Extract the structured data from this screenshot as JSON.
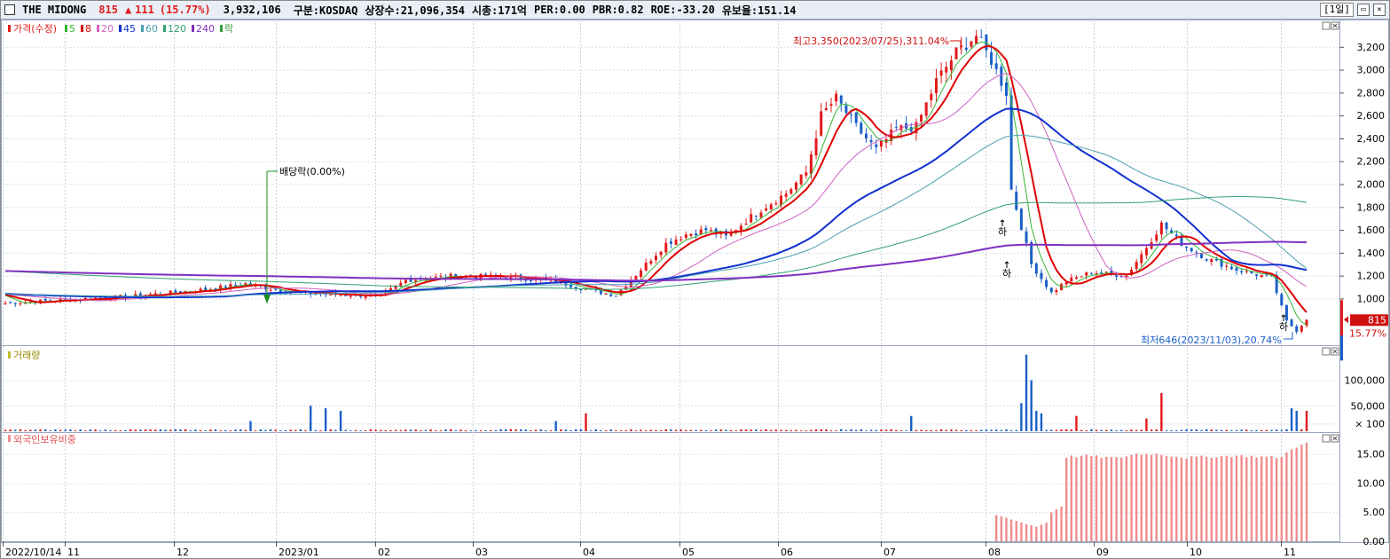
{
  "header": {
    "name": "THE MIDONG",
    "price": "815",
    "change_arrow": "▲",
    "change": "111",
    "change_pct": "(15.77%)",
    "volume": "3,932,106",
    "market": "구분:KOSDAQ",
    "shares": "상장수:21,096,354",
    "mcap": "시총:171억",
    "per": "PER:0.00",
    "pbr": "PBR:0.82",
    "roe": "ROE:-33.20",
    "float": "유보율:151.14",
    "period": "[1일]"
  },
  "legend": {
    "price": "가격(수정)",
    "ma": [
      "5",
      "8",
      "20",
      "45",
      "60",
      "120",
      "240"
    ],
    "fall": "락"
  },
  "annotations": {
    "high": "최고3,350(2023/07/25),311.04%",
    "low": "최저646(2023/11/03),20.74%",
    "dividend": "배당락(0.00%)",
    "limit_down": "하"
  },
  "price_label": {
    "value": "815",
    "pct": "15.77%"
  },
  "panels": {
    "volume": "거래량",
    "foreign": "외국인보유비중"
  },
  "colors": {
    "up": "#e21a1a",
    "down": "#1a5fc8",
    "ma5": "#33b533",
    "ma8": "#e00000",
    "ma20": "#d060c0",
    "ma45": "#1030d0",
    "ma60": "#4aa0b0",
    "ma120": "#30a070",
    "ma240": "#8030c0",
    "foreign": "#f08c8c"
  },
  "chart_data": [
    {
      "type": "candlestick",
      "title": "THE MIDONG",
      "x_ticks": [
        "2022/10/14",
        "11",
        "12",
        "2023/01",
        "02",
        "03",
        "04",
        "05",
        "06",
        "07",
        "08",
        "09",
        "10",
        "11"
      ],
      "ylim": [
        600,
        3400
      ],
      "y_ticks": [
        "1,000",
        "1,200",
        "1,400",
        "1,600",
        "1,800",
        "2,000",
        "2,200",
        "2,400",
        "2,600",
        "2,800",
        "3,000",
        "3,200"
      ],
      "close_anchors": [
        [
          0,
          960
        ],
        [
          25,
          1020
        ],
        [
          40,
          1080
        ],
        [
          48,
          1130
        ],
        [
          55,
          1070
        ],
        [
          62,
          1040
        ],
        [
          70,
          1030
        ],
        [
          75,
          1020
        ],
        [
          80,
          1160
        ],
        [
          90,
          1200
        ],
        [
          100,
          1190
        ],
        [
          110,
          1150
        ],
        [
          118,
          1060
        ],
        [
          122,
          1030
        ],
        [
          128,
          1300
        ],
        [
          132,
          1480
        ],
        [
          136,
          1560
        ],
        [
          140,
          1600
        ],
        [
          144,
          1540
        ],
        [
          150,
          1750
        ],
        [
          156,
          1920
        ],
        [
          160,
          2100
        ],
        [
          163,
          2600
        ],
        [
          166,
          2750
        ],
        [
          170,
          2500
        ],
        [
          174,
          2300
        ],
        [
          178,
          2480
        ],
        [
          182,
          2500
        ],
        [
          186,
          2900
        ],
        [
          190,
          3150
        ],
        [
          194,
          3300
        ],
        [
          197,
          3080
        ],
        [
          200,
          2800
        ],
        [
          201,
          1950
        ],
        [
          205,
          1300
        ],
        [
          209,
          1050
        ],
        [
          212,
          1150
        ],
        [
          217,
          1230
        ],
        [
          224,
          1200
        ],
        [
          228,
          1450
        ],
        [
          231,
          1650
        ],
        [
          235,
          1480
        ],
        [
          240,
          1350
        ],
        [
          246,
          1250
        ],
        [
          253,
          1180
        ],
        [
          256,
          800
        ],
        [
          258,
          720
        ],
        [
          260,
          815
        ]
      ],
      "ma_periods": [
        5,
        8,
        20,
        45,
        60,
        120,
        240
      ],
      "last_price": 815
    },
    {
      "type": "bar",
      "title": "거래량",
      "ylim": [
        0,
        160000
      ],
      "y_ticks": [
        "100,000",
        "50,000",
        "× 100"
      ],
      "spikes": [
        [
          49,
          20000
        ],
        [
          61,
          50000
        ],
        [
          64,
          45000
        ],
        [
          67,
          40000
        ],
        [
          110,
          20000
        ],
        [
          116,
          35000
        ],
        [
          181,
          30000
        ],
        [
          203,
          55000
        ],
        [
          204,
          150000
        ],
        [
          205,
          100000
        ],
        [
          206,
          40000
        ],
        [
          207,
          35000
        ],
        [
          214,
          30000
        ],
        [
          228,
          25000
        ],
        [
          231,
          75000
        ],
        [
          257,
          45000
        ],
        [
          258,
          40000
        ],
        [
          260,
          40000
        ]
      ]
    },
    {
      "type": "bar",
      "title": "외국인보유비중",
      "ylim": [
        0,
        18
      ],
      "y_ticks": [
        "15.00",
        "10.00",
        "5.00",
        "0.00"
      ],
      "start_index": 198,
      "segments": [
        [
          198,
          4.5
        ],
        [
          204,
          3.0
        ],
        [
          206,
          2.5
        ],
        [
          208,
          3.2
        ],
        [
          209,
          5.0
        ],
        [
          211,
          6.0
        ],
        [
          212,
          14.5
        ],
        [
          216,
          14.7
        ],
        [
          222,
          14.3
        ],
        [
          226,
          15.0
        ],
        [
          230,
          15.0
        ],
        [
          236,
          14.4
        ],
        [
          246,
          14.7
        ],
        [
          255,
          14.4
        ],
        [
          257,
          16.0
        ],
        [
          260,
          16.8
        ]
      ]
    }
  ]
}
